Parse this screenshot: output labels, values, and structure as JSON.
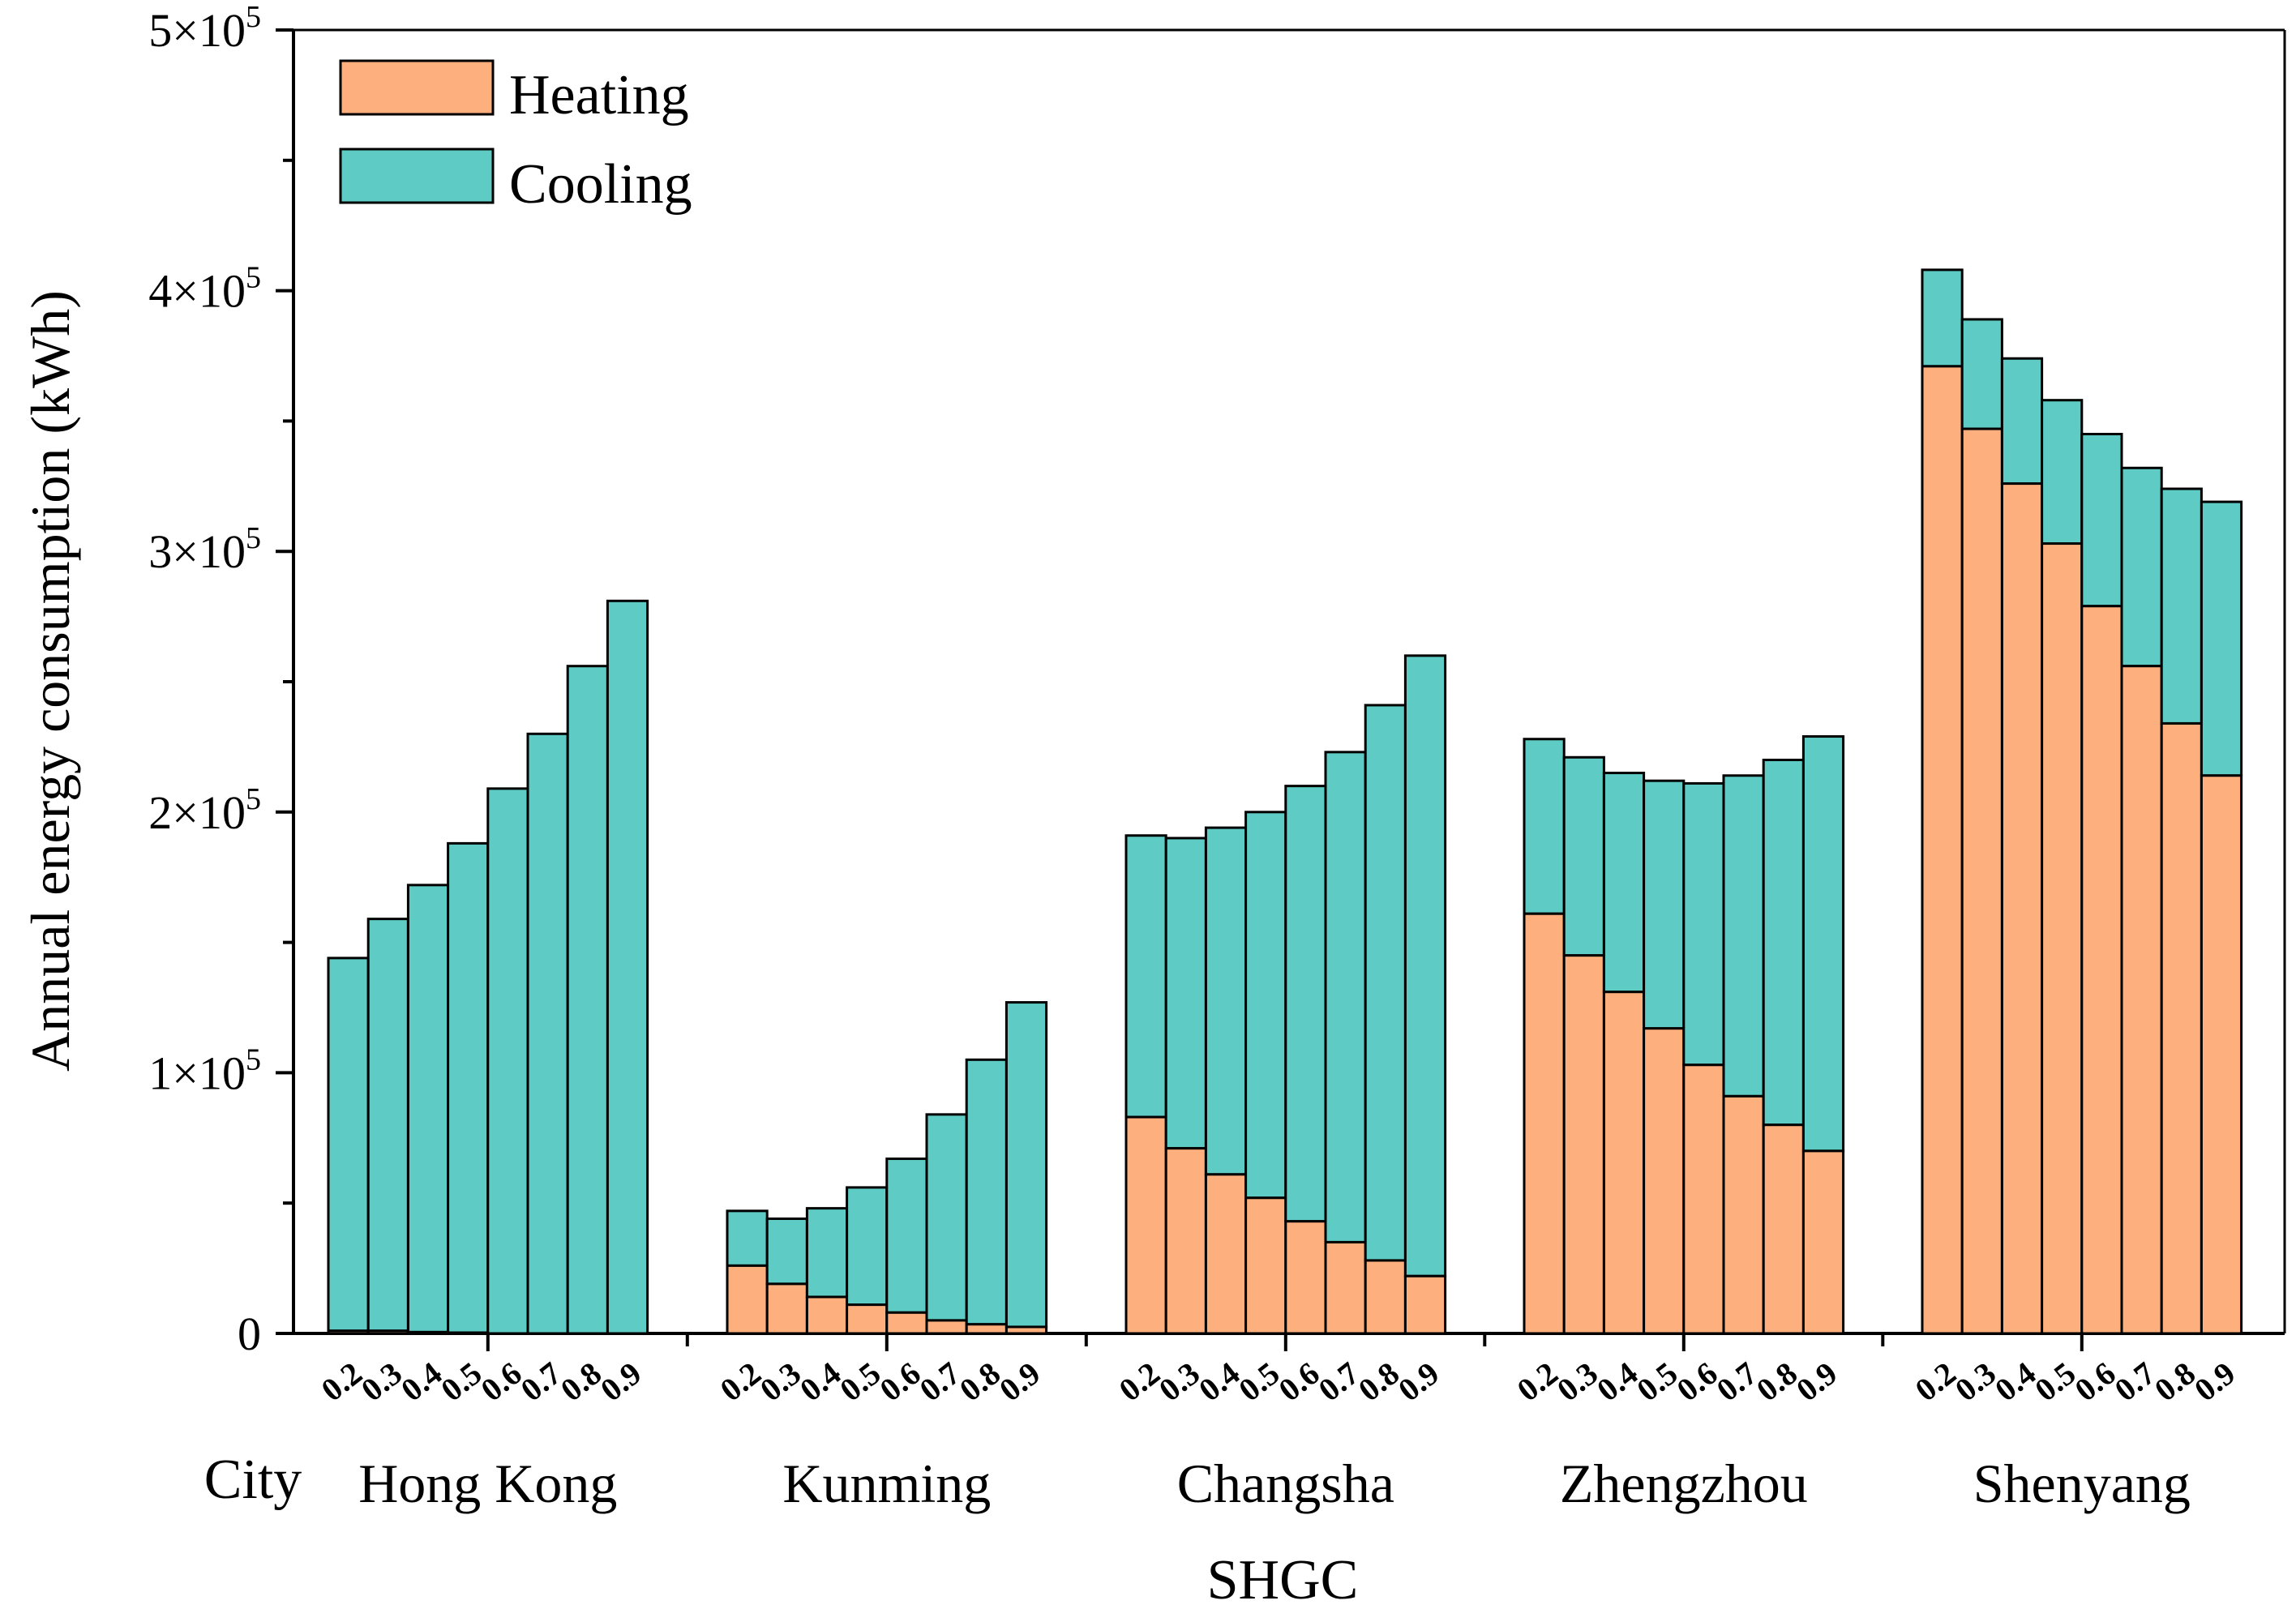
{
  "colors": {
    "heating": "#FDAF7D",
    "cooling": "#5ECCC4",
    "stroke": "#000000"
  },
  "chart_data": {
    "type": "bar",
    "stacked": true,
    "title": "",
    "xlabel": "SHGC",
    "ylabel": "Annual energy consumption (kWh)",
    "group_axis_label": "City",
    "ylim": [
      0,
      500000
    ],
    "ytick_labels": [
      {
        "value": 0,
        "mantissa": "0",
        "exp": ""
      },
      {
        "value": 100000,
        "mantissa": "1×10",
        "exp": "5"
      },
      {
        "value": 200000,
        "mantissa": "2×10",
        "exp": "5"
      },
      {
        "value": 300000,
        "mantissa": "3×10",
        "exp": "5"
      },
      {
        "value": 400000,
        "mantissa": "4×10",
        "exp": "5"
      },
      {
        "value": 500000,
        "mantissa": "5×10",
        "exp": "5"
      }
    ],
    "categories": [
      "0.2",
      "0.3",
      "0.4",
      "0.5",
      "0.6",
      "0.7",
      "0.8",
      "0.9"
    ],
    "legend": {
      "position": "top-left",
      "entries": [
        "Heating",
        "Cooling"
      ]
    },
    "groups": [
      {
        "city": "Hong Kong",
        "heating": [
          1000,
          1000,
          500,
          300,
          0,
          0,
          0,
          0
        ],
        "total": [
          144000,
          159000,
          172000,
          188000,
          209000,
          230000,
          256000,
          281000
        ]
      },
      {
        "city": "Kunming",
        "heating": [
          26000,
          19000,
          14000,
          11000,
          8000,
          5000,
          3500,
          2500
        ],
        "total": [
          47000,
          44000,
          48000,
          56000,
          67000,
          84000,
          105000,
          127000
        ]
      },
      {
        "city": "Changsha",
        "heating": [
          83000,
          71000,
          61000,
          52000,
          43000,
          35000,
          28000,
          22000
        ],
        "total": [
          191000,
          190000,
          194000,
          200000,
          210000,
          223000,
          241000,
          260000
        ]
      },
      {
        "city": "Zhengzhou",
        "heating": [
          161000,
          145000,
          131000,
          117000,
          103000,
          91000,
          80000,
          70000
        ],
        "total": [
          228000,
          221000,
          215000,
          212000,
          211000,
          214000,
          220000,
          229000
        ]
      },
      {
        "city": "Shenyang",
        "heating": [
          371000,
          347000,
          326000,
          303000,
          279000,
          256000,
          234000,
          214000
        ],
        "total": [
          408000,
          389000,
          374000,
          358000,
          345000,
          332000,
          324000,
          319000
        ]
      }
    ]
  }
}
